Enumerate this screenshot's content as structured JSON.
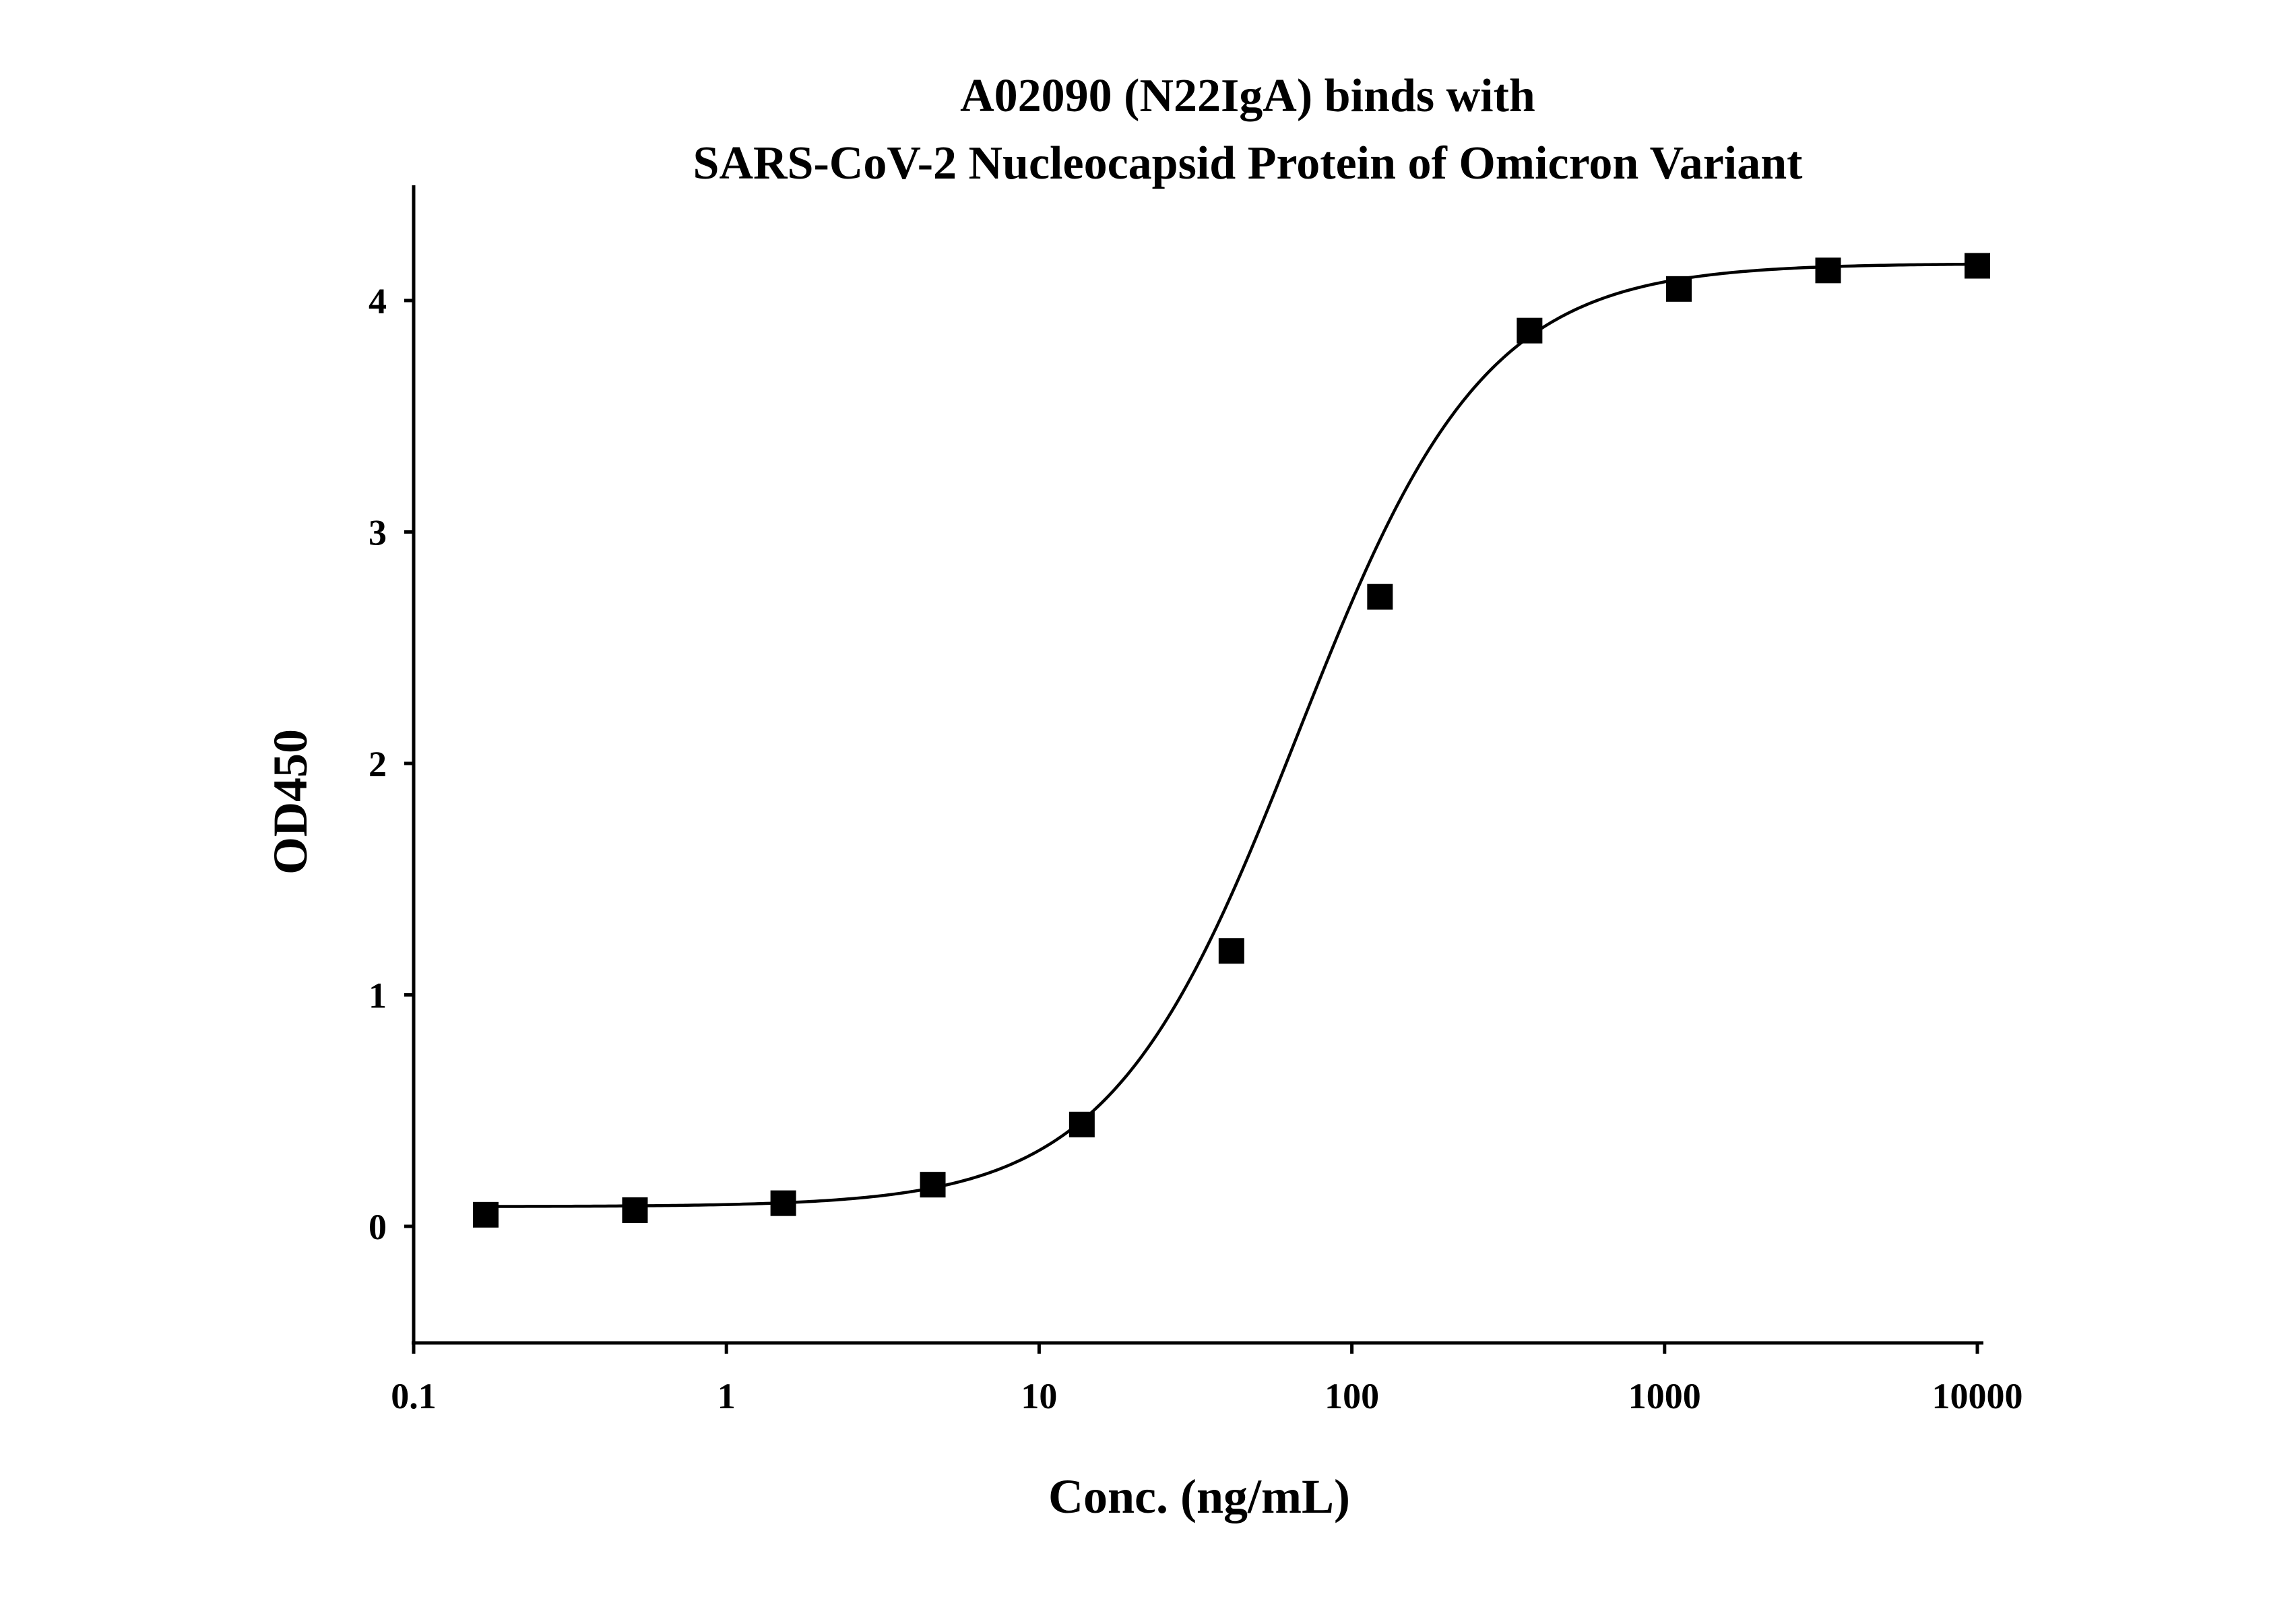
{
  "chart_data": {
    "type": "scatter",
    "title_lines": [
      "A02090 (N22IgA) binds with",
      "SARS-CoV-2 Nucleocapsid Protein of Omicron Variant"
    ],
    "xlabel": "Conc. (ng/mL)",
    "ylabel": "OD450",
    "x_scale": "log",
    "xlim": [
      0.1,
      10000
    ],
    "ylim": [
      -0.5,
      4.5
    ],
    "x_ticks": [
      0.1,
      1,
      10,
      100,
      1000,
      10000
    ],
    "x_tick_labels": [
      "0.1",
      "1",
      "10",
      "100",
      "1000",
      "10000"
    ],
    "y_ticks": [
      0,
      1,
      2,
      3,
      4
    ],
    "y_tick_labels": [
      "0",
      "1",
      "2",
      "3",
      "4"
    ],
    "grid": false,
    "points": [
      {
        "x": 0.17,
        "y": 0.05
      },
      {
        "x": 0.51,
        "y": 0.07
      },
      {
        "x": 1.52,
        "y": 0.1
      },
      {
        "x": 4.57,
        "y": 0.18
      },
      {
        "x": 13.7,
        "y": 0.44
      },
      {
        "x": 41.2,
        "y": 1.19
      },
      {
        "x": 123,
        "y": 2.72
      },
      {
        "x": 370,
        "y": 3.87
      },
      {
        "x": 1111,
        "y": 4.05
      },
      {
        "x": 3333,
        "y": 4.13
      },
      {
        "x": 10000,
        "y": 4.15
      }
    ],
    "fit": {
      "model": "4PL",
      "bottom": 0.085,
      "top": 4.16,
      "ec50": 67,
      "hill": 1.45
    },
    "marker_color": "#000000",
    "line_color": "#000000"
  }
}
